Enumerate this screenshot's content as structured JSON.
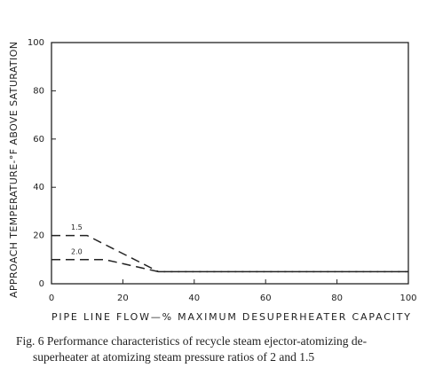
{
  "chart_data": {
    "type": "line",
    "x_label": "PIPE LINE FLOW—% MAXIMUM DESUPERHEATER CAPACITY",
    "y_label": "APPROACH TEMPERATURE-°F ABOVE SATURATION",
    "caption_lines": [
      "Fig. 6  Performance characteristics of recycle steam ejector-atomizing de-",
      "superheater at atomizing steam pressure ratios of 2 and 1.5"
    ],
    "series": [
      {
        "name": "1.5",
        "color": "#222222",
        "x": [
          0,
          10,
          30,
          100
        ],
        "values": [
          20,
          20,
          5,
          5
        ]
      },
      {
        "name": "2.0",
        "color": "#222222",
        "x": [
          0,
          15,
          30,
          100
        ],
        "values": [
          10,
          10,
          5,
          5
        ]
      }
    ],
    "xlim": [
      0,
      100
    ],
    "xticks": [
      0,
      20,
      40,
      60,
      80,
      100
    ],
    "ylim": [
      0,
      100
    ],
    "yticks": [
      0,
      20,
      40,
      60,
      80,
      100
    ],
    "grid": false
  }
}
